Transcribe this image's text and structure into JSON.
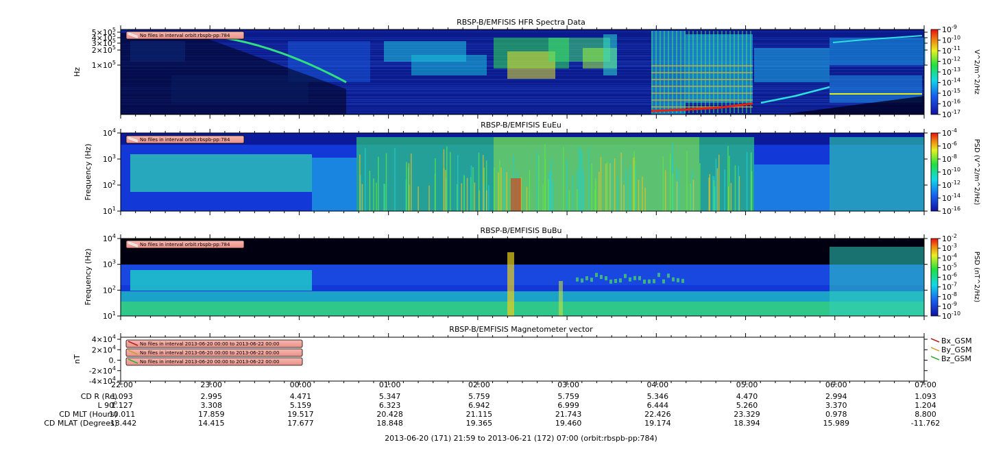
{
  "panel_titles": {
    "hfr": "RBSP-B/EMFISIS  HFR Spectra Data",
    "eueu": "RBSP-B/EMFISIS  EuEu",
    "bubu": "RBSP-B/EMFISIS  BuBu",
    "mag": "RBSP-B/EMFISIS  Magnetometer vector"
  },
  "axis_labels": {
    "hfr_y": "Hz",
    "eueu_y": "Frequency (Hz)",
    "bubu_y": "Frequency (Hz)",
    "mag_y": "nT",
    "hfr_cb": "V^2/m^2/Hz",
    "eueu_cb": "PSD (V^2/m^2/Hz)",
    "bubu_cb": "PSD (nT^2/Hz)"
  },
  "notices": {
    "orbit": "No files in interval orbit:rbspb-pp:784",
    "mag": "No files in interval 2013-06-20 00:00 to 2013-06-22 00:00"
  },
  "legend": [
    "Bx_GSM",
    "By_GSM",
    "Bz_GSM"
  ],
  "colors": {
    "bx": "#b02020",
    "by": "#c8a030",
    "bz": "#30b030",
    "notice_fill": "#f0a0a0"
  },
  "footer": "2013-06-20 (171) 21:59 to 2013-06-21 (172) 07:00 (orbit:rbspb-pp:784)",
  "ephemeris": {
    "labels": [
      "CD R (Re)",
      "L 90",
      "CD MLT (Hours)",
      "CD MLAT (Degrees)"
    ],
    "times": [
      "22:00",
      "23:00",
      "00:00",
      "01:00",
      "02:00",
      "03:00",
      "04:00",
      "05:00",
      "06:00",
      "07:00"
    ],
    "rows": [
      [
        "1.093",
        "2.995",
        "4.471",
        "5.347",
        "5.759",
        "5.759",
        "5.346",
        "4.470",
        "2.994",
        "1.093"
      ],
      [
        "1.127",
        "3.308",
        "5.159",
        "6.323",
        "6.942",
        "6.999",
        "6.444",
        "5.260",
        "3.370",
        "1.204"
      ],
      [
        "10.011",
        "17.859",
        "19.517",
        "20.428",
        "21.115",
        "21.743",
        "22.426",
        "23.329",
        "0.978",
        "8.800"
      ],
      [
        "-13.442",
        "14.415",
        "17.677",
        "18.848",
        "19.365",
        "19.460",
        "19.174",
        "18.394",
        "15.989",
        "-11.762"
      ]
    ]
  },
  "chart_data": [
    {
      "type": "heatmap",
      "title": "RBSP-B/EMFISIS  HFR Spectra Data",
      "ylabel": "Hz",
      "ylog": true,
      "y_ticks": [
        "5×10^5",
        "4×10^5",
        "3×10^5",
        "2×10^5",
        "1×10^5"
      ],
      "y_tick_values": [
        500000,
        400000,
        300000,
        200000,
        100000
      ],
      "ylim": [
        10000,
        500000
      ],
      "zlabel": "V^2/m^2/Hz",
      "zlim": [
        "10^-17",
        "10^-9"
      ],
      "colorbar_ticks": [
        "10^-9",
        "10^-10",
        "10^-11",
        "10^-12",
        "10^-13",
        "10^-14",
        "10^-15",
        "10^-16",
        "10^-17"
      ],
      "x_ticks": [
        "22:00",
        "23:00",
        "00:00",
        "01:00",
        "02:00",
        "03:00",
        "04:00",
        "05:00",
        "06:00",
        "07:00"
      ]
    },
    {
      "type": "heatmap",
      "title": "RBSP-B/EMFISIS  EuEu",
      "ylabel": "Frequency (Hz)",
      "ylog": true,
      "y_ticks": [
        "10^4",
        "10^3",
        "10^2",
        "10^1"
      ],
      "ylim": [
        10,
        10000
      ],
      "zlabel": "PSD (V^2/m^2/Hz)",
      "colorbar_ticks": [
        "10^-4",
        "10^-6",
        "10^-8",
        "10^-10",
        "10^-12",
        "10^-14",
        "10^-16"
      ],
      "x_ticks": [
        "22:00",
        "23:00",
        "00:00",
        "01:00",
        "02:00",
        "03:00",
        "04:00",
        "05:00",
        "06:00",
        "07:00"
      ]
    },
    {
      "type": "heatmap",
      "title": "RBSP-B/EMFISIS  BuBu",
      "ylabel": "Frequency (Hz)",
      "ylog": true,
      "y_ticks": [
        "10^4",
        "10^3",
        "10^2",
        "10^1"
      ],
      "ylim": [
        10,
        10000
      ],
      "zlabel": "PSD (nT^2/Hz)",
      "colorbar_ticks": [
        "10^-2",
        "10^-3",
        "10^-4",
        "10^-5",
        "10^-6",
        "10^-7",
        "10^-8",
        "10^-9",
        "10^-10"
      ],
      "x_ticks": [
        "22:00",
        "23:00",
        "00:00",
        "01:00",
        "02:00",
        "03:00",
        "04:00",
        "05:00",
        "06:00",
        "07:00"
      ]
    },
    {
      "type": "line",
      "title": "RBSP-B/EMFISIS  Magnetometer vector",
      "ylabel": "nT",
      "y_ticks": [
        "4×10^4",
        "2×10^4",
        "0.",
        "-2×10^4",
        "-4×10^4"
      ],
      "ylim": [
        -40000,
        40000
      ],
      "series": [
        {
          "name": "Bx_GSM",
          "values": []
        },
        {
          "name": "By_GSM",
          "values": []
        },
        {
          "name": "Bz_GSM",
          "values": []
        }
      ],
      "x_ticks": [
        "22:00",
        "23:00",
        "00:00",
        "01:00",
        "02:00",
        "03:00",
        "04:00",
        "05:00",
        "06:00",
        "07:00"
      ]
    }
  ]
}
